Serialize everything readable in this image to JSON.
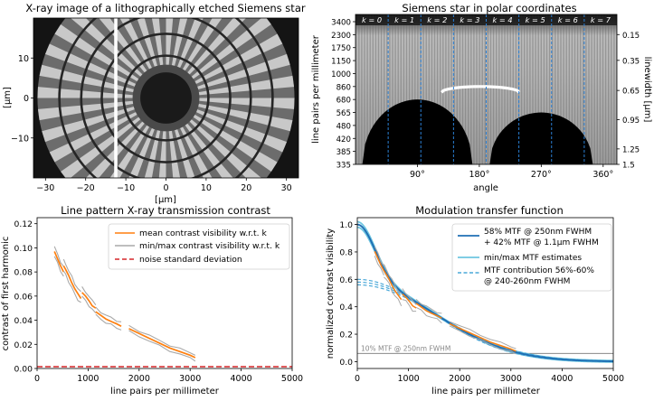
{
  "colors": {
    "mean": "#ff7f0e",
    "minmax": "#a9a9a9",
    "noise": "#d62728",
    "mtf_model": "#1f6fb4",
    "mtf_est": "#6ec6e0",
    "mtf_contrib": "#4aa8d8",
    "kline": "#2a7fd4",
    "ref_line": "#777777"
  },
  "chart_data": [
    {
      "id": "xray",
      "type": "image",
      "title": "X-ray image of a lithographically etched Siemens star",
      "xlabel": "[μm]",
      "ylabel": "[μm]",
      "xlim": [
        -33,
        33
      ],
      "ylim": [
        -20,
        20
      ],
      "xticks": [
        -30,
        -20,
        -10,
        0,
        10,
        20,
        30
      ],
      "yticks": [
        10,
        0,
        -10
      ],
      "star": {
        "center": [
          0,
          0
        ],
        "radius": 32,
        "spokes": 72,
        "inner_ring": 3.2,
        "marker_x": -12.5
      }
    },
    {
      "id": "polar",
      "type": "heatmap",
      "title": "Siemens star in polar coordinates",
      "xlabel": "angle",
      "ylabel": "line pairs per millimeter",
      "ylabel_right": "linewidth [μm]",
      "xlim": [
        0,
        380
      ],
      "xticks": [
        90,
        180,
        270,
        360
      ],
      "xtick_labels": [
        "90°",
        "180°",
        "270°",
        "360°"
      ],
      "yticks": [
        "3400",
        "2300",
        "1750",
        "1150",
        "1000",
        "860",
        "680",
        "565",
        "480",
        "420",
        "385",
        "335"
      ],
      "yticks_right": [
        "0.15",
        "0.35",
        "0.65",
        "0.95",
        "1.25",
        "1.5"
      ],
      "k_labels": [
        "k = 0",
        "k = 1",
        "k = 2",
        "k = 3",
        "k = 4",
        "k = 5",
        "k = 6",
        "k = 7"
      ],
      "k_dividers_deg": [
        47.5,
        95,
        142.5,
        190,
        237.5,
        285,
        332.5
      ],
      "shadows": [
        {
          "center_deg": 90,
          "half_width_deg": 80,
          "peak_lpmm": 680
        },
        {
          "center_deg": 270,
          "half_width_deg": 75,
          "peak_lpmm": 565
        }
      ],
      "arc": {
        "from_deg": 125,
        "to_deg": 238,
        "peak_lpmm": 860
      }
    },
    {
      "id": "contrast",
      "type": "line",
      "title": "Line pattern X-ray transmission contrast",
      "xlabel": "line pairs per millimeter",
      "ylabel": "contrast of first harmonic",
      "xlim": [
        0,
        5000
      ],
      "ylim": [
        0,
        0.125
      ],
      "xticks": [
        0,
        1000,
        2000,
        3000,
        4000,
        5000
      ],
      "yticks": [
        0.0,
        0.02,
        0.04,
        0.06,
        0.08,
        0.1,
        0.12
      ],
      "ytick_labels": [
        "0.00",
        "0.02",
        "0.04",
        "0.06",
        "0.08",
        "0.10",
        "0.12"
      ],
      "legend": [
        "mean contrast visibility w.r.t. k",
        "min/max contrast visibility w.r.t. k",
        "noise standard deviation"
      ],
      "noise_level": 0.0015,
      "segments": [
        {
          "x": [
            340,
            400,
            460,
            520
          ],
          "mean": [
            0.097,
            0.091,
            0.085,
            0.08
          ],
          "spread": 0.005
        },
        {
          "x": [
            520,
            560,
            620,
            680,
            740,
            800,
            860
          ],
          "mean": [
            0.085,
            0.082,
            0.077,
            0.071,
            0.066,
            0.062,
            0.058
          ],
          "spread": 0.006
        },
        {
          "x": [
            880,
            950,
            1020,
            1080,
            1150
          ],
          "mean": [
            0.063,
            0.06,
            0.056,
            0.052,
            0.05
          ],
          "spread": 0.005
        },
        {
          "x": [
            1150,
            1250,
            1350,
            1450,
            1560,
            1650
          ],
          "mean": [
            0.047,
            0.044,
            0.041,
            0.039,
            0.037,
            0.035
          ],
          "spread": 0.004
        },
        {
          "x": [
            1800,
            2000,
            2200,
            2400,
            2600,
            2800,
            3000,
            3100
          ],
          "mean": [
            0.033,
            0.029,
            0.025,
            0.021,
            0.017,
            0.014,
            0.011,
            0.009
          ],
          "spread": 0.003
        }
      ]
    },
    {
      "id": "mtf",
      "type": "line",
      "title": "Modulation transfer function",
      "xlabel": "line pairs per millimeter",
      "ylabel": "normalized contrast visibility",
      "xlim": [
        0,
        5000
      ],
      "ylim": [
        -0.05,
        1.05
      ],
      "xticks": [
        0,
        1000,
        2000,
        3000,
        4000,
        5000
      ],
      "yticks": [
        0.0,
        0.2,
        0.4,
        0.6,
        0.8,
        1.0
      ],
      "ytick_labels": [
        "0.0",
        "0.2",
        "0.4",
        "0.6",
        "0.8",
        "1.0"
      ],
      "legend": [
        "58% MTF @ 250nm FWHM",
        "+ 42% MTF @ 1.1μm FWHM",
        "min/max MTF estimates",
        "MTF contribution 56%-60%",
        "@ 240-260nm FWHM"
      ],
      "ref_line_y": 0.06,
      "ref_label": "10% MTF @ 250nm FWHM",
      "model": {
        "w1": 0.58,
        "fwhm1_nm": 250,
        "w2": 0.42,
        "fwhm2_nm": 1100
      },
      "contrib": [
        {
          "w": 0.56,
          "fwhm_nm": 240
        },
        {
          "w": 0.58,
          "fwhm_nm": 250
        },
        {
          "w": 0.6,
          "fwhm_nm": 260
        }
      ],
      "estimates": {
        "x_from": 340,
        "x_to": 3100
      }
    }
  ]
}
